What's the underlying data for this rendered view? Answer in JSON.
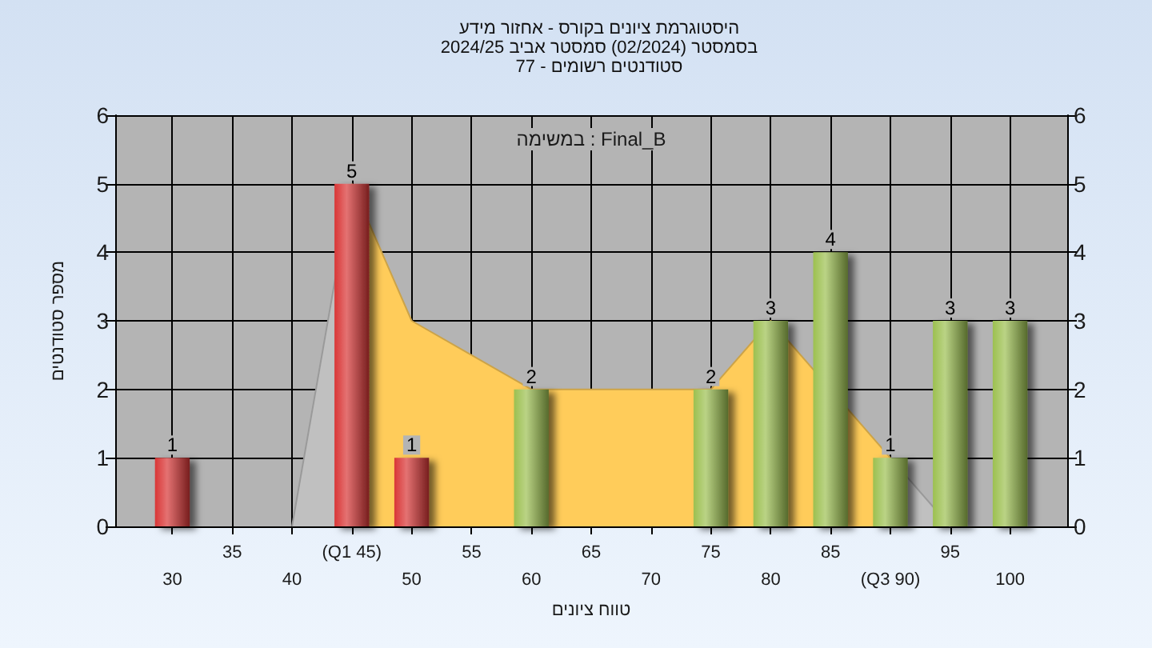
{
  "chart_data": {
    "type": "bar",
    "title": "היסטוגרמת ציונים בקורס - אחזור מידע",
    "subtitle": "בסמסטר (02/2024) סמסטר אביב 2024/25\nסטודנטים רשומים - 77",
    "xlabel": "טווח ציונים",
    "ylabel": "מספר סטודנטים",
    "annotations": [
      "במשימה : Final_B"
    ],
    "categories": [
      "30",
      "35",
      "40",
      "(Q1 45)",
      "50",
      "55",
      "60",
      "65",
      "70",
      "75",
      "80",
      "85",
      "(Q3 90)",
      "95",
      "100"
    ],
    "series": [
      {
        "type": "area",
        "color": "#c0c0c0",
        "values": [
          null,
          null,
          0,
          5,
          null,
          null,
          null,
          null,
          null,
          null,
          null,
          null,
          null,
          null,
          null
        ]
      },
      {
        "type": "area",
        "color": "#ffcc5a",
        "values": [
          null,
          null,
          null,
          5,
          3,
          2.5,
          2,
          2,
          2,
          2,
          3,
          null,
          1,
          null,
          null
        ]
      },
      {
        "colors": [
          "#d93636",
          "#d93636",
          "#d93636",
          "#d93636",
          "#d93636",
          "#9cc050",
          "#9cc050",
          "#9cc050",
          "#9cc050",
          "#9cc050",
          "#9cc050",
          "#9cc050",
          "#9cc050",
          "#9cc050",
          "#9cc050"
        ],
        "values": [
          1,
          0,
          0,
          5,
          1,
          0,
          2,
          0,
          0,
          2,
          3,
          4,
          1,
          3,
          3
        ],
        "value_labels": [
          "1",
          null,
          null,
          "5",
          "1",
          null,
          "2",
          null,
          null,
          "2",
          "3",
          "4",
          "1",
          "3",
          "3"
        ]
      },
      {
        "type": "area",
        "color": "#c0c0c0",
        "values": [
          null,
          null,
          null,
          null,
          null,
          null,
          null,
          null,
          null,
          null,
          null,
          null,
          1,
          0,
          null
        ]
      }
    ],
    "ylim": [
      0,
      6
    ],
    "yticks": [
      0,
      1,
      2,
      3,
      4,
      5,
      6
    ],
    "y2lim": [
      0,
      6
    ],
    "y2ticks": [
      0,
      1,
      2,
      3,
      4,
      5,
      6
    ],
    "grid": true,
    "marker": "none"
  }
}
